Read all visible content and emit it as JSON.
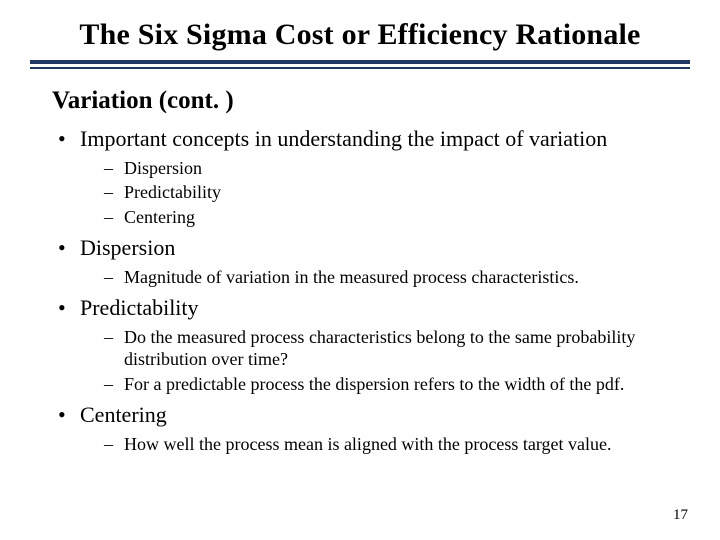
{
  "colors": {
    "rule": "#1f3864",
    "background": "#ffffff",
    "text": "#000000"
  },
  "typography": {
    "family": "Times New Roman",
    "title_size_pt": 30,
    "subheading_size_pt": 25,
    "level1_size_pt": 22,
    "level2_size_pt": 18,
    "page_num_size_pt": 15
  },
  "title": "The Six Sigma Cost or Efficiency Rationale",
  "subheading": "Variation (cont. )",
  "bullets": [
    {
      "text": "Important concepts in understanding the impact of variation",
      "children": [
        {
          "text": "Dispersion"
        },
        {
          "text": "Predictability"
        },
        {
          "text": "Centering"
        }
      ]
    },
    {
      "text": "Dispersion",
      "children": [
        {
          "text": "Magnitude of variation in the measured process characteristics."
        }
      ]
    },
    {
      "text": "Predictability",
      "children": [
        {
          "text": "Do the measured process characteristics belong to the same probability distribution over time?"
        },
        {
          "text": "For a predictable process the dispersion refers to the width of the pdf."
        }
      ]
    },
    {
      "text": "Centering",
      "children": [
        {
          "text": "How well the process mean is aligned with the process target value."
        }
      ]
    }
  ],
  "page_number": "17"
}
